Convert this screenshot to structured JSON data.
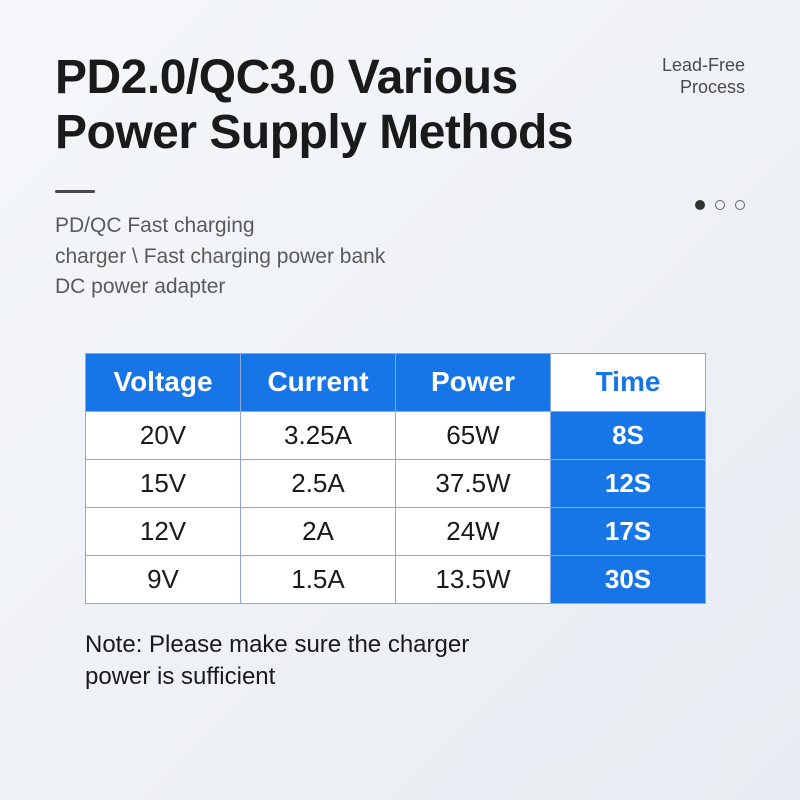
{
  "title_line1": "PD2.0/QC3.0 Various",
  "title_line2": "Power Supply Methods",
  "badge_line1": "Lead-Free",
  "badge_line2": "Process",
  "subtitle_line1": "PD/QC Fast charging",
  "subtitle_line2": "charger \\ Fast charging power bank",
  "subtitle_line3": "DC power adapter",
  "table": {
    "headers": [
      "Voltage",
      "Current",
      "Power",
      "Time"
    ],
    "header_bg": "#1675e7",
    "header_fg": "#ffffff",
    "time_header_bg": "#ffffff",
    "time_header_fg": "#1675e7",
    "cell_bg": "#ffffff",
    "cell_fg": "#1a1a1a",
    "time_cell_bg": "#1675e7",
    "time_cell_fg": "#ffffff",
    "border_color": "#8aa8d8",
    "rows": [
      {
        "voltage": "20V",
        "current": "3.25A",
        "power": "65W",
        "time": "8S"
      },
      {
        "voltage": "15V",
        "current": "2.5A",
        "power": "37.5W",
        "time": "12S"
      },
      {
        "voltage": "12V",
        "current": "2A",
        "power": "24W",
        "time": "17S"
      },
      {
        "voltage": "9V",
        "current": "1.5A",
        "power": "13.5W",
        "time": "30S"
      }
    ]
  },
  "note_line1": "Note: Please make sure the charger",
  "note_line2": "power is sufficient",
  "colors": {
    "bg_start": "#f5f7fa",
    "bg_end": "#e8ecf2",
    "title": "#1a1a1a",
    "subtitle": "#5a5a5a",
    "accent": "#1675e7"
  }
}
